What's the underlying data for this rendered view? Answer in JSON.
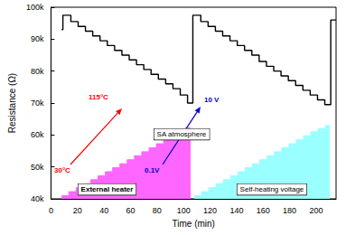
{
  "chart_data": {
    "type": "line",
    "x_label": "Time (min)",
    "y_label": "Resistance (Ω)",
    "xlim": [
      0,
      215
    ],
    "ylim": [
      40000,
      100000
    ],
    "xticks": [
      0,
      20,
      40,
      60,
      80,
      100,
      120,
      140,
      160,
      180,
      200
    ],
    "yticks": [
      {
        "value": 40000,
        "label": "40k"
      },
      {
        "value": 50000,
        "label": "50k"
      },
      {
        "value": 60000,
        "label": "60k"
      },
      {
        "value": 70000,
        "label": "70k"
      },
      {
        "value": 80000,
        "label": "80k"
      },
      {
        "value": 90000,
        "label": "90k"
      },
      {
        "value": 100000,
        "label": "100k"
      }
    ],
    "grid": false,
    "series": [
      {
        "type": "area",
        "color": "#ff66ff",
        "line_style": "step",
        "x": [
          8,
          13.5,
          19,
          24.5,
          30,
          35.5,
          41,
          46.5,
          52,
          57.5,
          63,
          68.5,
          74,
          79.5,
          85,
          90.5,
          96,
          101.5,
          105
        ],
        "values": [
          41000,
          42250,
          43500,
          44750,
          46000,
          47250,
          48500,
          49750,
          51000,
          52250,
          53500,
          54750,
          56000,
          57250,
          58500,
          59750,
          61000,
          62250,
          40000
        ]
      },
      {
        "type": "area",
        "color": "#99ffff",
        "line_style": "step",
        "x": [
          108,
          113.5,
          119,
          124.5,
          130,
          135.5,
          141,
          146.5,
          152,
          157.5,
          163,
          168.5,
          174,
          179.5,
          185,
          190.5,
          196,
          201.5,
          207,
          210
        ],
        "values": [
          41000,
          42250,
          43500,
          44750,
          46000,
          47250,
          48500,
          49750,
          51000,
          52250,
          53500,
          54750,
          56000,
          57250,
          58500,
          59750,
          61000,
          62000,
          63000,
          40000
        ]
      },
      {
        "type": "line",
        "color": "#000000",
        "line_style": "step",
        "x": [
          8,
          9,
          15,
          20.5,
          26,
          31.5,
          37,
          42.5,
          48,
          53.5,
          59,
          64.5,
          70,
          75.5,
          81,
          86.5,
          92,
          97.5,
          103,
          107,
          113,
          118.5,
          124,
          129.5,
          135,
          140.5,
          146,
          151.5,
          157,
          162.5,
          168,
          173.5,
          179,
          184.5,
          190,
          195.5,
          201,
          206.5,
          211,
          215
        ],
        "values": [
          93000,
          97500,
          95500,
          94000,
          92500,
          91000,
          89500,
          88000,
          86500,
          85000,
          83500,
          82000,
          80500,
          79000,
          77500,
          76000,
          74500,
          72500,
          70000,
          97500,
          95500,
          94000,
          92500,
          91000,
          89500,
          88000,
          86500,
          85000,
          83000,
          81500,
          80000,
          78500,
          77000,
          75500,
          74000,
          72500,
          71000,
          69500,
          96000,
          96000
        ]
      }
    ],
    "annotations": [
      {
        "text": "30°C",
        "color": "#ff0000"
      },
      {
        "text": "115°C",
        "color": "#ff0000"
      },
      {
        "text": "External heater",
        "color": "#000000"
      },
      {
        "text": "SA atmosphere",
        "color": "#000000"
      },
      {
        "text": "0.1V",
        "color": "#0000cc"
      },
      {
        "text": "10 V",
        "color": "#0000cc"
      },
      {
        "text": "Self-heating voltage",
        "color": "#000000"
      }
    ]
  }
}
